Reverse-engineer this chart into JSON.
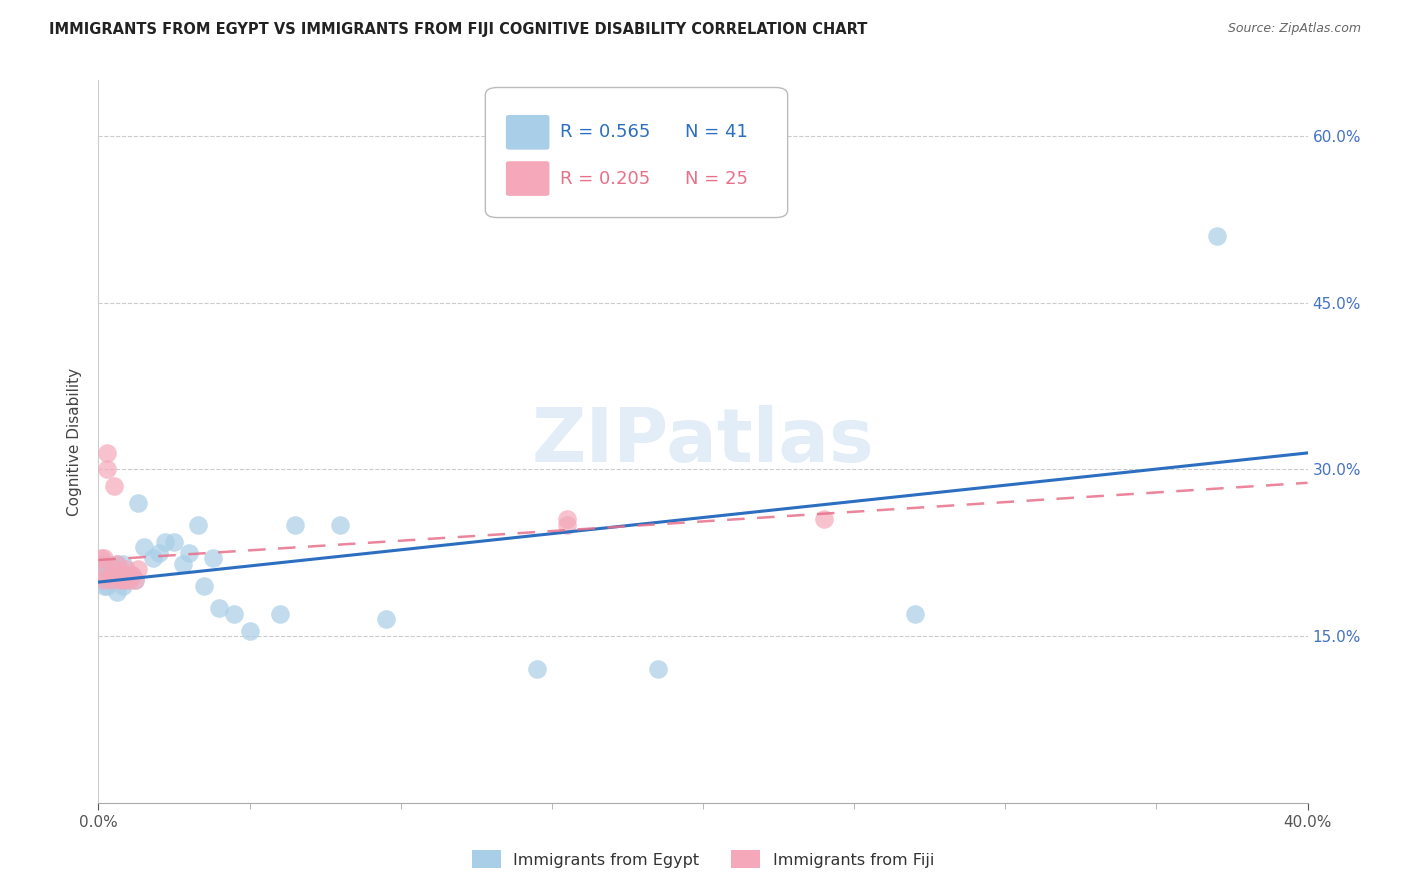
{
  "title": "IMMIGRANTS FROM EGYPT VS IMMIGRANTS FROM FIJI COGNITIVE DISABILITY CORRELATION CHART",
  "source": "Source: ZipAtlas.com",
  "ylabel": "Cognitive Disability",
  "xlim": [
    0.0,
    0.4
  ],
  "ylim": [
    0.0,
    0.65
  ],
  "yticks": [
    0.15,
    0.3,
    0.45,
    0.6
  ],
  "xticks_minor": [
    0.05,
    0.1,
    0.15,
    0.2,
    0.25,
    0.3,
    0.35
  ],
  "xticks_labeled": [
    0.0,
    0.4
  ],
  "egypt_color": "#A8CEE8",
  "fiji_color": "#F4A8BA",
  "egypt_line_color": "#2C6EBF",
  "fiji_line_color": "#E8708A",
  "egypt_R": 0.565,
  "egypt_N": 41,
  "fiji_R": 0.205,
  "fiji_N": 25,
  "watermark": "ZIPatlas",
  "tick_color_y": "#4472C4",
  "tick_color_x": "#555555",
  "egypt_x": [
    0.001,
    0.001,
    0.002,
    0.002,
    0.003,
    0.003,
    0.004,
    0.004,
    0.005,
    0.005,
    0.006,
    0.006,
    0.007,
    0.008,
    0.008,
    0.009,
    0.01,
    0.011,
    0.012,
    0.013,
    0.015,
    0.018,
    0.02,
    0.022,
    0.025,
    0.028,
    0.03,
    0.033,
    0.035,
    0.038,
    0.04,
    0.045,
    0.05,
    0.06,
    0.065,
    0.08,
    0.095,
    0.145,
    0.185,
    0.27,
    0.37
  ],
  "egypt_y": [
    0.205,
    0.215,
    0.195,
    0.21,
    0.195,
    0.215,
    0.2,
    0.21,
    0.205,
    0.205,
    0.19,
    0.215,
    0.205,
    0.195,
    0.215,
    0.2,
    0.205,
    0.205,
    0.2,
    0.27,
    0.23,
    0.22,
    0.225,
    0.235,
    0.235,
    0.215,
    0.225,
    0.25,
    0.195,
    0.22,
    0.175,
    0.17,
    0.155,
    0.17,
    0.25,
    0.25,
    0.165,
    0.12,
    0.12,
    0.17,
    0.51
  ],
  "fiji_x": [
    0.001,
    0.001,
    0.002,
    0.002,
    0.003,
    0.003,
    0.004,
    0.004,
    0.005,
    0.005,
    0.006,
    0.006,
    0.007,
    0.007,
    0.008,
    0.008,
    0.009,
    0.01,
    0.01,
    0.011,
    0.012,
    0.013,
    0.155,
    0.155,
    0.24
  ],
  "fiji_y": [
    0.205,
    0.22,
    0.2,
    0.22,
    0.3,
    0.315,
    0.205,
    0.2,
    0.21,
    0.285,
    0.215,
    0.205,
    0.205,
    0.2,
    0.205,
    0.2,
    0.21,
    0.205,
    0.2,
    0.205,
    0.2,
    0.21,
    0.255,
    0.25,
    0.255
  ]
}
